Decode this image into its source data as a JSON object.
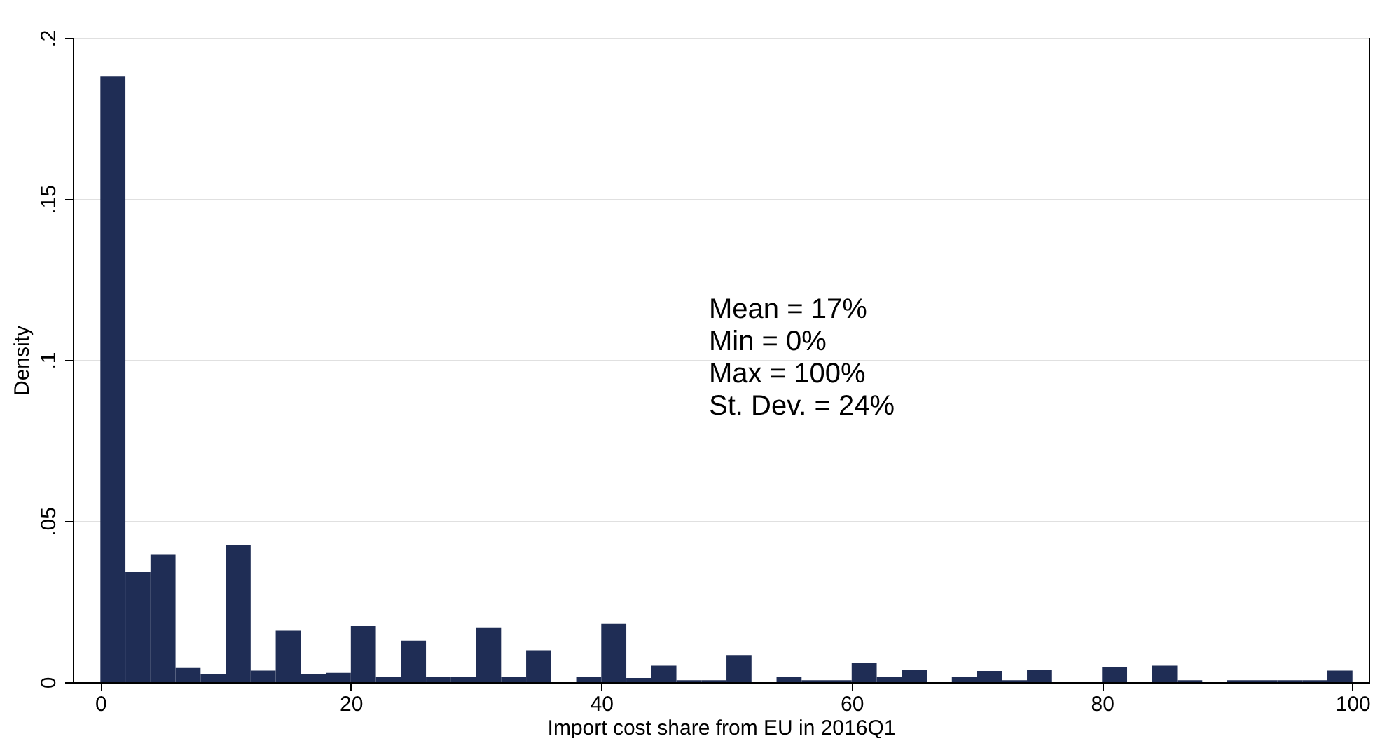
{
  "chart_data": {
    "type": "histogram",
    "xlabel": "Import cost share from EU in 2016Q1",
    "ylabel": "Density",
    "color": "#1f2d55",
    "bins": [
      0,
      2,
      4,
      6,
      8,
      10,
      12,
      14,
      16,
      18,
      20,
      22,
      24,
      26,
      28,
      30,
      32,
      34,
      36,
      38,
      40,
      42,
      44,
      46,
      48,
      50,
      52,
      54,
      56,
      58,
      60,
      62,
      64,
      66,
      68,
      70,
      72,
      74,
      76,
      78,
      80,
      82,
      84,
      86,
      88,
      90,
      92,
      94,
      96,
      98,
      100
    ],
    "values": [
      0.188,
      0.0342,
      0.0397,
      0.0044,
      0.0025,
      0.0426,
      0.0036,
      0.016,
      0.0025,
      0.0029,
      0.0174,
      0.0016,
      0.0129,
      0.0016,
      0.0016,
      0.017,
      0.0016,
      0.0099,
      0,
      0.0016,
      0.0181,
      0.0013,
      0.0051,
      0.0006,
      0.0006,
      0.0084,
      0,
      0.0016,
      0.0006,
      0.0006,
      0.0061,
      0.0016,
      0.0039,
      0,
      0.0016,
      0.0035,
      0.0006,
      0.0039,
      0,
      0,
      0.0046,
      0,
      0.0051,
      0.0006,
      0,
      0.0006,
      0.0006,
      0.0006,
      0.0006,
      0.0036
    ],
    "xlim": [
      -2.2,
      101.3
    ],
    "ylim": [
      0,
      0.2
    ],
    "xticks": [
      0,
      20,
      40,
      60,
      80,
      100
    ],
    "yticks": [
      0,
      {
        "value": 0.05,
        "label": ".05"
      },
      {
        "value": 0.1,
        "label": ".1"
      },
      {
        "value": 0.15,
        "label": ".15"
      },
      {
        "value": 0.2,
        "label": ".2"
      }
    ],
    "grid": "y",
    "annotations": [
      "Mean = 17%",
      "Min = 0%",
      "Max = 100%",
      "St. Dev. = 24%"
    ]
  }
}
